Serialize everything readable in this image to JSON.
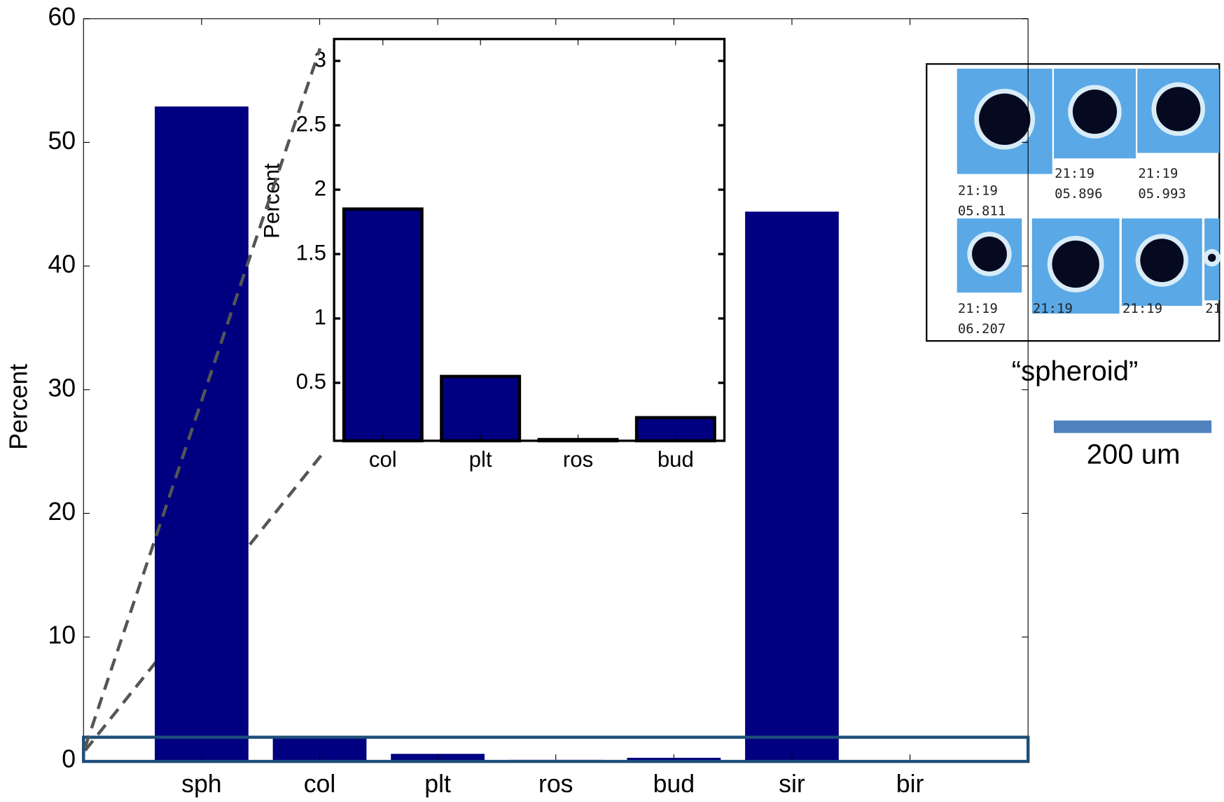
{
  "chart_data": [
    {
      "type": "bar",
      "ylabel": "Percent",
      "categories": [
        "sph",
        "col",
        "plt",
        "ros",
        "bud",
        "sir",
        "bir"
      ],
      "values": [
        52.9,
        1.85,
        0.55,
        0.06,
        0.23,
        44.4,
        0
      ],
      "color": "#000080",
      "ylim": [
        0,
        60
      ],
      "yticks": [
        0,
        10,
        20,
        30,
        40,
        50,
        60
      ]
    },
    {
      "type": "bar",
      "ylabel": "Percent",
      "categories": [
        "col",
        "plt",
        "ros",
        "bud"
      ],
      "values": [
        1.85,
        0.55,
        0.06,
        0.23
      ],
      "color": "#000080",
      "ylim": [
        0.05,
        3.17
      ],
      "yticks": [
        0.5,
        1,
        1.5,
        2,
        2.5,
        3
      ]
    }
  ],
  "micrographs": [
    [
      "21:19",
      "05.811"
    ],
    [
      "21:19",
      "05.896"
    ],
    [
      "21:19",
      "05.993"
    ],
    [
      "21:19",
      "06.207"
    ],
    [
      "21:19"
    ],
    [
      "21:19"
    ],
    [
      "21"
    ]
  ],
  "caption": "“spheroid”",
  "scale_bar_label": "200 um"
}
